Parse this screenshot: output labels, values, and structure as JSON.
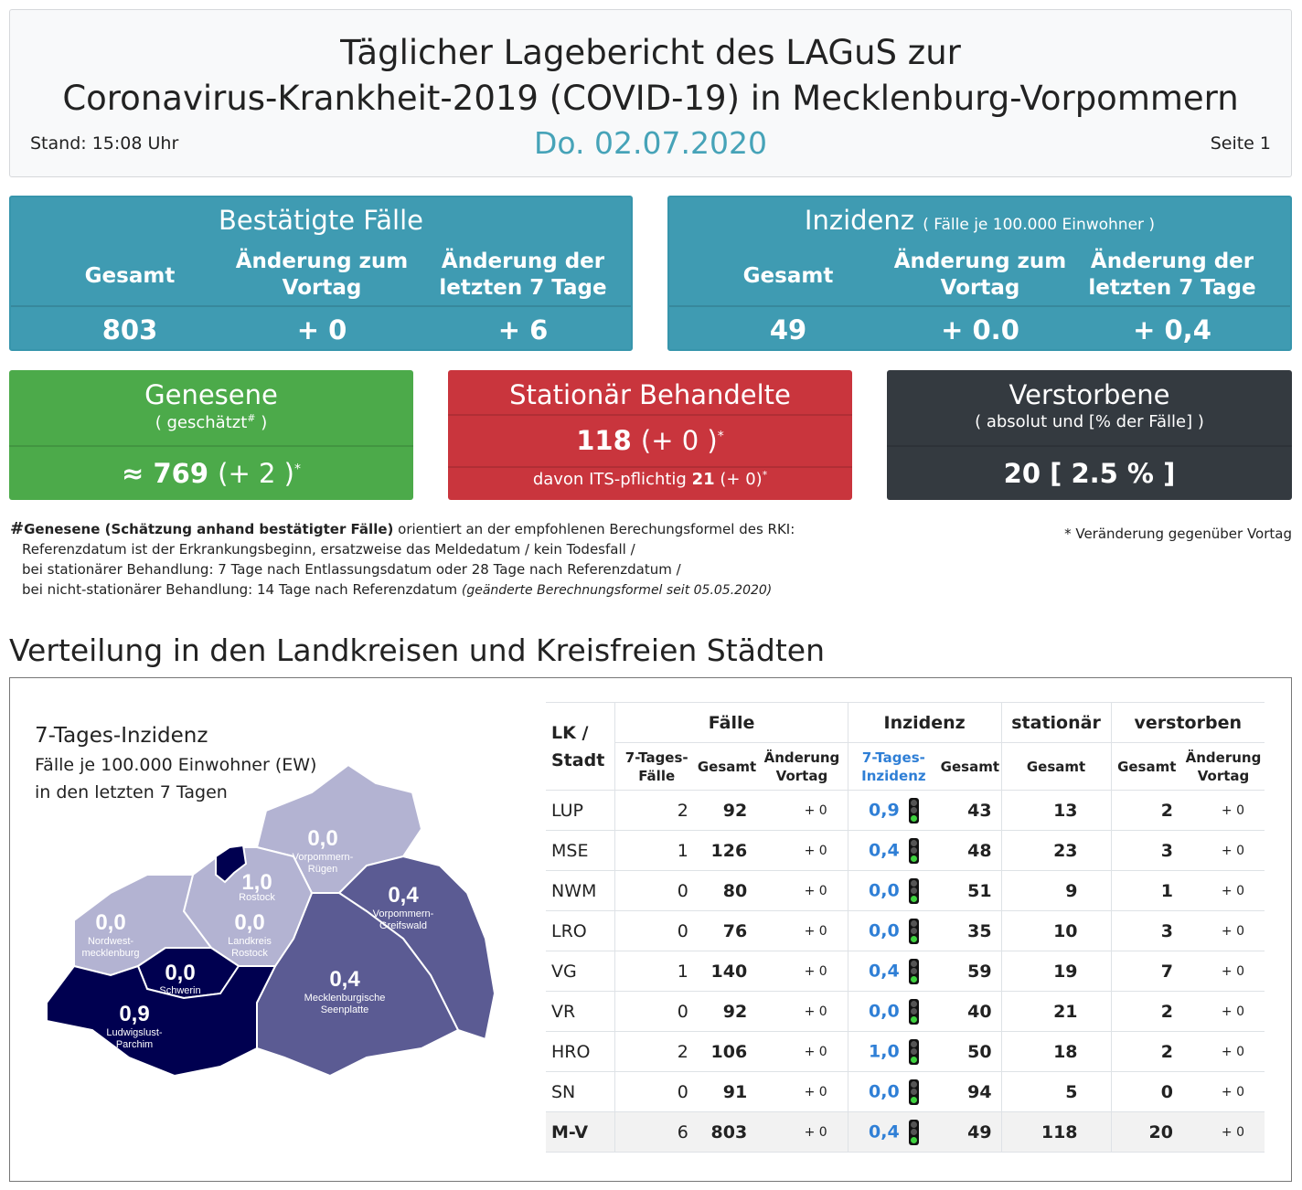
{
  "header": {
    "title_line1": "Täglicher Lagebericht des LAGuS zur",
    "title_line2": "Coronavirus-Krankheit-2019 (COVID-19) in Mecklenburg-Vorpommern",
    "stand": "Stand: 15:08 Uhr",
    "date": "Do. 02.07.2020",
    "page": "Seite 1"
  },
  "confirmed": {
    "title": "Bestätigte Fälle",
    "col_total": "Gesamt",
    "col_change_day_l1": "Änderung zum",
    "col_change_day_l2": "Vortag",
    "col_change_week_l1": "Änderung der",
    "col_change_week_l2": "letzten 7 Tage",
    "total": "803",
    "change_day": "+ 0",
    "change_week": "+ 6"
  },
  "incidence": {
    "title": "Inzidenz",
    "title_note": "( Fälle je 100.000 Einwohner )",
    "col_total": "Gesamt",
    "col_change_day_l1": "Änderung zum",
    "col_change_day_l2": "Vortag",
    "col_change_week_l1": "Änderung der",
    "col_change_week_l2": "letzten 7 Tage",
    "total": "49",
    "change_day": "+ 0.0",
    "change_week": "+ 0,4"
  },
  "recovered": {
    "title": "Genesene",
    "subtitle": "( geschätzt",
    "subtitle_mark": "#",
    "subtitle_end": ")",
    "approx": "≈",
    "value": "769",
    "change": "(+ 2 )",
    "star": "*"
  },
  "hospital": {
    "title": "Stationär Behandelte",
    "value": "118",
    "change": "(+ 0 )",
    "star": "*",
    "its_label": "davon ITS-pflichtig",
    "its_value": "21",
    "its_change": "(+ 0)",
    "its_star": "*"
  },
  "deceased": {
    "title": "Verstorbene",
    "subtitle": "( absolut und [% der Fälle] )",
    "value": "20",
    "percent": "[ 2.5 % ]"
  },
  "footnote": {
    "mark": "#",
    "bold": "Genesene (Schätzung anhand bestätigter Fälle)",
    "line1_rest": " orientiert an der empfohlenen Berechungsformel des RKI:",
    "line2": "Referenzdatum ist der Erkrankungsbeginn, ersatzweise das Meldedatum / kein Todesfall /",
    "line3": "bei stationärer Behandlung: 7 Tage nach Entlassungsdatum oder 28 Tage nach Referenzdatum /",
    "line4": "bei nicht-stationärer Behandlung: 14 Tage nach Referenzdatum ",
    "line4_italic": "(geänderte Berechnungsformel seit 05.05.2020)",
    "star_note": "* Veränderung gegenüber Vortag"
  },
  "section_title": "Verteilung in den Landkreisen und Kreisfreien Städten",
  "map": {
    "title": "7-Tages-Inzidenz",
    "sub1": "Fälle je 100.000 Einwohner (EW)",
    "sub2": "in den letzten 7 Tagen",
    "regions": [
      {
        "value": "0,0",
        "name1": "Vorpommern-",
        "name2": "Rügen",
        "color": "#b3b3d2"
      },
      {
        "value": "1,0",
        "name1": "Rostock",
        "name2": "",
        "color": "#000050"
      },
      {
        "value": "0,4",
        "name1": "Vorpommern-",
        "name2": "Greifswald",
        "color": "#5b5b93"
      },
      {
        "value": "0,0",
        "name1": "Nordwest-",
        "name2": "mecklenburg",
        "color": "#b3b3d2"
      },
      {
        "value": "0,0",
        "name1": "Landkreis",
        "name2": "Rostock",
        "color": "#b3b3d2"
      },
      {
        "value": "0,0",
        "name1": "Schwerin",
        "name2": "",
        "color": "#b3b3d2"
      },
      {
        "value": "0,4",
        "name1": "Mecklenburgische",
        "name2": "Seenplatte",
        "color": "#5b5b93"
      },
      {
        "value": "0,9",
        "name1": "Ludwigslust-",
        "name2": "Parchim",
        "color": "#000050"
      }
    ]
  },
  "table": {
    "h_lk_l1": "LK /",
    "h_lk_l2": "Stadt",
    "h_faelle": "Fälle",
    "h_inzidenz": "Inzidenz",
    "h_stationaer": "stationär",
    "h_verstorben": "verstorben",
    "h_7tage_faelle_l1": "7-Tages-",
    "h_7tage_faelle_l2": "Fälle",
    "h_gesamt": "Gesamt",
    "h_aenderung_l1": "Änderung",
    "h_aenderung_l2": "Vortag",
    "h_7tage_inz_l1": "7-Tages-",
    "h_7tage_inz_l2": "Inzidenz",
    "rows": [
      {
        "lk": "LUP",
        "f7": "2",
        "fg": "92",
        "fc": "+ 0",
        "i7": "0,9",
        "ig": "43",
        "st": "13",
        "vg": "2",
        "vc": "+ 0"
      },
      {
        "lk": "MSE",
        "f7": "1",
        "fg": "126",
        "fc": "+ 0",
        "i7": "0,4",
        "ig": "48",
        "st": "23",
        "vg": "3",
        "vc": "+ 0"
      },
      {
        "lk": "NWM",
        "f7": "0",
        "fg": "80",
        "fc": "+ 0",
        "i7": "0,0",
        "ig": "51",
        "st": "9",
        "vg": "1",
        "vc": "+ 0"
      },
      {
        "lk": "LRO",
        "f7": "0",
        "fg": "76",
        "fc": "+ 0",
        "i7": "0,0",
        "ig": "35",
        "st": "10",
        "vg": "3",
        "vc": "+ 0"
      },
      {
        "lk": "VG",
        "f7": "1",
        "fg": "140",
        "fc": "+ 0",
        "i7": "0,4",
        "ig": "59",
        "st": "19",
        "vg": "7",
        "vc": "+ 0"
      },
      {
        "lk": "VR",
        "f7": "0",
        "fg": "92",
        "fc": "+ 0",
        "i7": "0,0",
        "ig": "40",
        "st": "21",
        "vg": "2",
        "vc": "+ 0"
      },
      {
        "lk": "HRO",
        "f7": "2",
        "fg": "106",
        "fc": "+ 0",
        "i7": "1,0",
        "ig": "50",
        "st": "18",
        "vg": "2",
        "vc": "+ 0"
      },
      {
        "lk": "SN",
        "f7": "0",
        "fg": "91",
        "fc": "+ 0",
        "i7": "0,0",
        "ig": "94",
        "st": "5",
        "vg": "0",
        "vc": "+ 0"
      },
      {
        "lk": "M-V",
        "f7": "6",
        "fg": "803",
        "fc": "+ 0",
        "i7": "0,4",
        "ig": "49",
        "st": "118",
        "vg": "20",
        "vc": "+ 0"
      }
    ]
  }
}
